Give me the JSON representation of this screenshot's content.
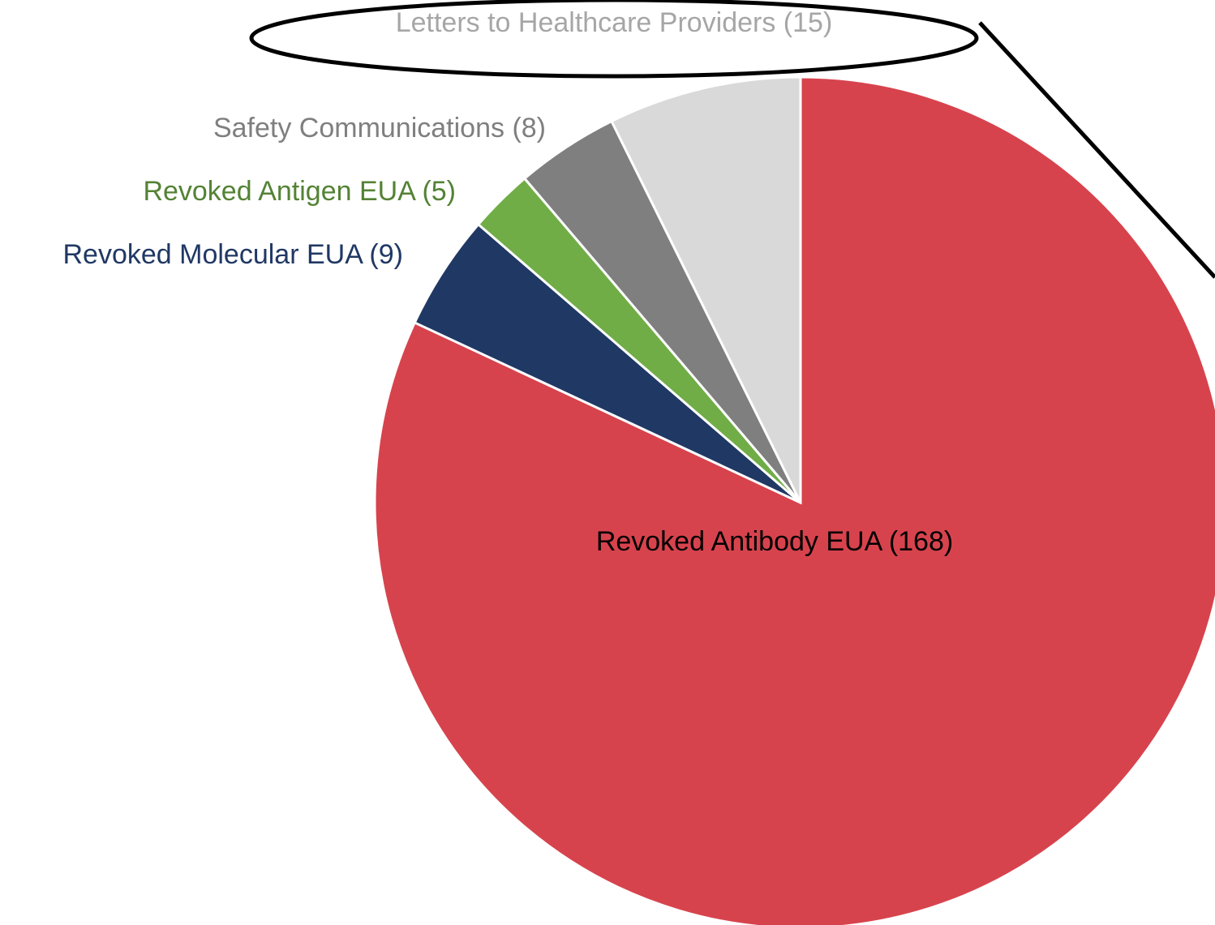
{
  "chart_data": {
    "type": "pie",
    "categories": [
      "Revoked Antibody EUA (168)",
      "Revoked Molecular EUA (9)",
      "Revoked Antigen EUA (5)",
      "Safety Communications (8)",
      "Letters to Healthcare Providers (15)"
    ],
    "values": [
      168,
      9,
      5,
      8,
      15
    ],
    "colors": [
      "#d7434d",
      "#203864",
      "#70ad47",
      "#7f7f7f",
      "#d9d9d9"
    ]
  }
}
